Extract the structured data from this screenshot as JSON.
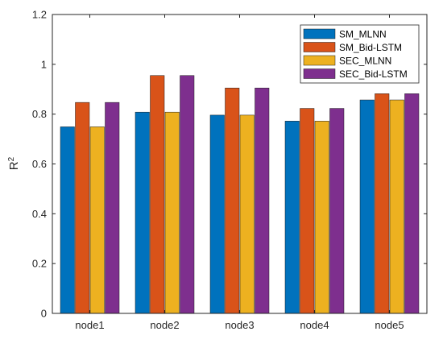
{
  "chart_data": {
    "type": "bar",
    "categories": [
      "node1",
      "node2",
      "node3",
      "node4",
      "node5"
    ],
    "series": [
      {
        "name": "SM_MLNN",
        "color": "#0072BD",
        "values": [
          0.749,
          0.808,
          0.796,
          0.772,
          0.857
        ]
      },
      {
        "name": "SM_Bid-LSTM",
        "color": "#D95319",
        "values": [
          0.847,
          0.955,
          0.905,
          0.823,
          0.882
        ]
      },
      {
        "name": "SEC_MLNN",
        "color": "#EDB120",
        "values": [
          0.749,
          0.808,
          0.796,
          0.772,
          0.857
        ]
      },
      {
        "name": "SEC_Bid-LSTM",
        "color": "#7E2F8E",
        "values": [
          0.847,
          0.955,
          0.905,
          0.823,
          0.882
        ]
      }
    ],
    "ylabel": "R",
    "ylabel_superscript": "2",
    "ylim": [
      0,
      1.2
    ],
    "yticks": [
      "0",
      "0.2",
      "0.4",
      "0.6",
      "0.8",
      "1",
      "1.2"
    ],
    "grid": false,
    "legend_position": "top-right"
  }
}
